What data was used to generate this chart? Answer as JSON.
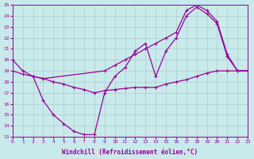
{
  "xlabel": "Windchill (Refroidissement éolien,°C)",
  "background_color": "#c8eaea",
  "grid_color": "#aacccc",
  "line_color": "#990099",
  "ylim": [
    13,
    25
  ],
  "xlim": [
    0,
    23
  ],
  "yticks": [
    13,
    14,
    15,
    16,
    17,
    18,
    19,
    20,
    21,
    22,
    23,
    24,
    25
  ],
  "xticks": [
    0,
    1,
    2,
    3,
    4,
    5,
    6,
    7,
    8,
    9,
    10,
    11,
    12,
    13,
    14,
    15,
    16,
    17,
    18,
    19,
    20,
    21,
    22,
    23
  ],
  "curve1_x": [
    0,
    1,
    2,
    3,
    9,
    10,
    11,
    12,
    13,
    14,
    15,
    16,
    17,
    18,
    19,
    20,
    21,
    22,
    23
  ],
  "curve1_y": [
    20,
    19,
    18.5,
    18.3,
    19.0,
    19.5,
    20.0,
    20.5,
    21.0,
    21.5,
    22.0,
    22.5,
    24.5,
    25.0,
    24.5,
    23.5,
    20.5,
    19.0,
    19.0
  ],
  "curve2_x": [
    2,
    3,
    4,
    5,
    6,
    7,
    8,
    9,
    10,
    11,
    12,
    13,
    14,
    15,
    16,
    17,
    18,
    19,
    20,
    21,
    22,
    23
  ],
  "curve2_y": [
    18.5,
    16.3,
    15.0,
    14.2,
    13.5,
    13.2,
    13.2,
    17.0,
    18.5,
    19.3,
    20.8,
    21.5,
    18.5,
    20.8,
    22.0,
    24.0,
    24.8,
    24.2,
    23.3,
    20.3,
    19.0,
    19.0
  ],
  "curve3_x": [
    0,
    1,
    2,
    3,
    4,
    5,
    6,
    7,
    8,
    9,
    10,
    11,
    12,
    13,
    14,
    15,
    16,
    17,
    18,
    19,
    20,
    21,
    22,
    23
  ],
  "curve3_y": [
    19.0,
    18.7,
    18.5,
    18.3,
    18.0,
    17.8,
    17.5,
    17.3,
    17.0,
    17.2,
    17.3,
    17.4,
    17.5,
    17.5,
    17.5,
    17.8,
    18.0,
    18.2,
    18.5,
    18.8,
    19.0,
    19.0,
    19.0,
    19.0
  ]
}
